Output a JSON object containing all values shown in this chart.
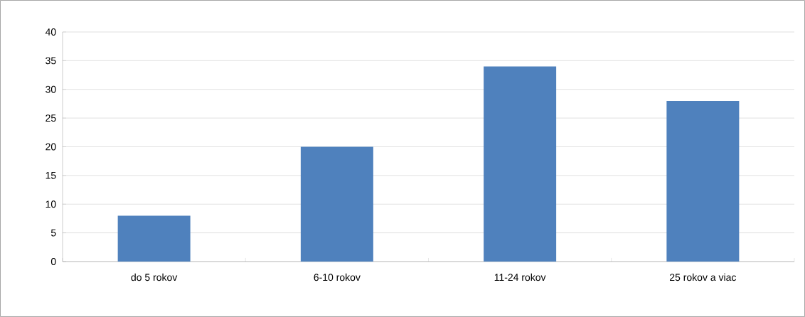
{
  "chart_data": {
    "type": "bar",
    "categories": [
      "do 5 rokov",
      "6-10 rokov",
      "11-24 rokov",
      "25 rokov a viac"
    ],
    "values": [
      8,
      20,
      34,
      28
    ],
    "color": "#4f81bd",
    "ylim": [
      0,
      40
    ],
    "yticks": [
      0,
      5,
      10,
      15,
      20,
      25,
      30,
      35,
      40
    ],
    "grid": "y"
  }
}
